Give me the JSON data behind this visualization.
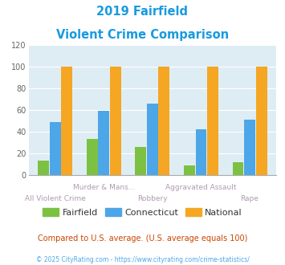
{
  "title_line1": "2019 Fairfield",
  "title_line2": "Violent Crime Comparison",
  "title_color": "#1a9ae0",
  "categories": [
    "All Violent Crime",
    "Murder & Mans...",
    "Robbery",
    "Aggravated Assault",
    "Rape"
  ],
  "fairfield": [
    13,
    33,
    26,
    9,
    12
  ],
  "connecticut": [
    49,
    59,
    66,
    42,
    51
  ],
  "national": [
    100,
    100,
    100,
    100,
    100
  ],
  "fairfield_color": "#7dc142",
  "connecticut_color": "#4da6e8",
  "national_color": "#f5a623",
  "ylim": [
    0,
    120
  ],
  "yticks": [
    0,
    20,
    40,
    60,
    80,
    100,
    120
  ],
  "plot_bg": "#deedf4",
  "footer_text": "Compared to U.S. average. (U.S. average equals 100)",
  "footer_color": "#cc4400",
  "credit_text": "© 2025 CityRating.com - https://www.cityrating.com/crime-statistics/",
  "credit_color": "#4da6e8",
  "legend_labels": [
    "Fairfield",
    "Connecticut",
    "National"
  ],
  "label_color": "#b09ab0"
}
